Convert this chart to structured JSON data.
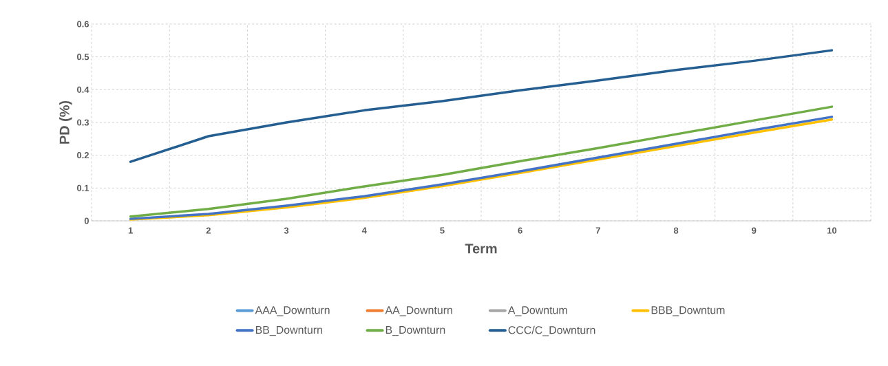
{
  "chart_data": {
    "type": "line",
    "xlabel": "Term",
    "ylabel": "PD (%)",
    "categories": [
      "1",
      "2",
      "3",
      "4",
      "5",
      "6",
      "7",
      "8",
      "9",
      "10"
    ],
    "ylim": [
      0,
      0.6
    ],
    "yticks": [
      0,
      0.1,
      0.2,
      0.3,
      0.4,
      0.5,
      0.6
    ],
    "grid": true,
    "legend": "bottom",
    "line_style": "solid",
    "marker": "none",
    "series": [
      {
        "name": "AAA_Downturn",
        "color": "#5b9bd5",
        "values": [
          null,
          null,
          null,
          null,
          null,
          null,
          null,
          null,
          null,
          null
        ]
      },
      {
        "name": "AA_Downturn",
        "color": "#ed7d31",
        "values": [
          null,
          null,
          null,
          null,
          null,
          null,
          null,
          null,
          null,
          null
        ]
      },
      {
        "name": "A_Downtum",
        "color": "#a5a5a5",
        "values": [
          null,
          null,
          null,
          null,
          null,
          null,
          null,
          null,
          null,
          null
        ]
      },
      {
        "name": "BBB_Downtum",
        "color": "#ffc000",
        "values": [
          0.004,
          0.017,
          0.041,
          0.07,
          0.106,
          0.146,
          0.187,
          0.228,
          0.269,
          0.309
        ]
      },
      {
        "name": "BB_Downturn",
        "color": "#4472c4",
        "values": [
          0.006,
          0.021,
          0.046,
          0.075,
          0.111,
          0.151,
          0.193,
          0.235,
          0.277,
          0.317
        ]
      },
      {
        "name": "B_Downturn",
        "color": "#70ad47",
        "values": [
          0.013,
          0.036,
          0.067,
          0.105,
          0.14,
          0.182,
          0.222,
          0.264,
          0.306,
          0.348
        ]
      },
      {
        "name": "CCC/C_Downturn",
        "color": "#255e91",
        "values": [
          0.18,
          0.258,
          0.3,
          0.337,
          0.365,
          0.398,
          0.428,
          0.46,
          0.488,
          0.52
        ]
      }
    ]
  }
}
